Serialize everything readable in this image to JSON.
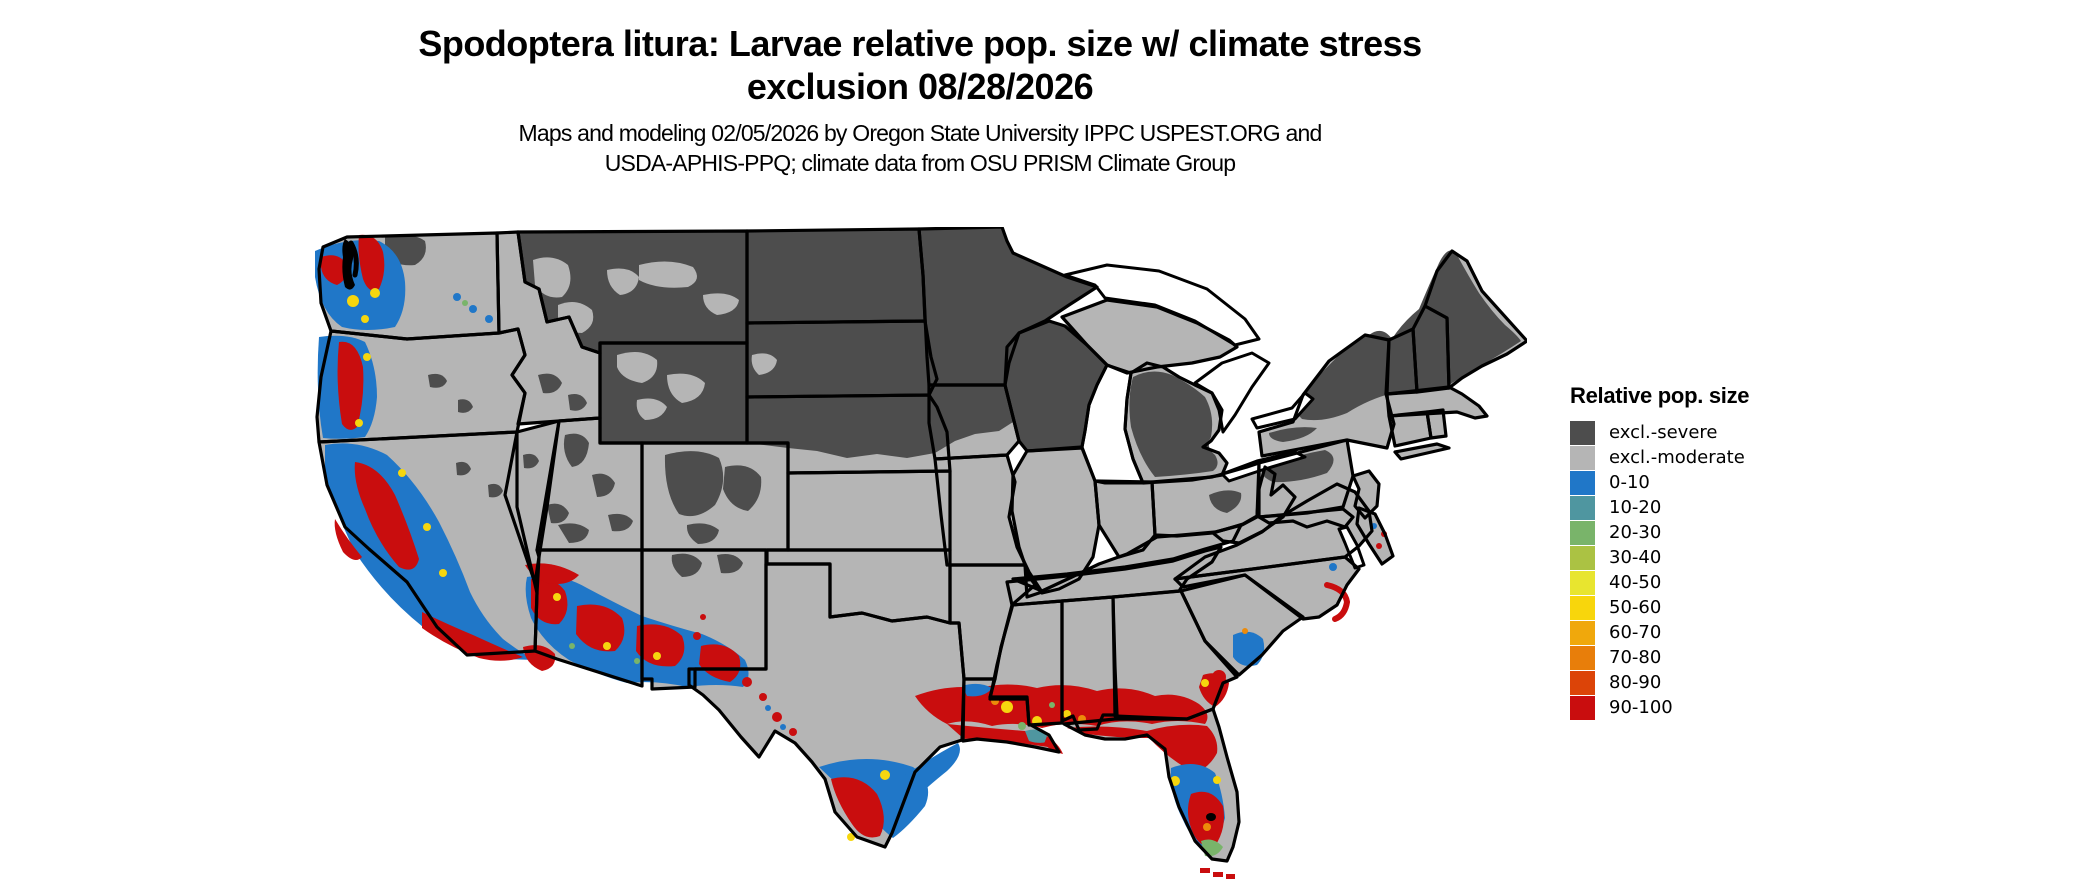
{
  "title": {
    "line1": "Spodoptera litura: Larvae relative pop. size w/ climate stress",
    "line2": "exclusion 08/28/2026"
  },
  "subtitle": {
    "line1": "Maps and modeling 02/05/2026 by Oregon State University IPPC USPEST.ORG and",
    "line2": "USDA-APHIS-PPQ; climate data from OSU PRISM Climate Group"
  },
  "legend": {
    "title": "Relative pop. size",
    "items": [
      {
        "label": "excl.-severe",
        "color": "#4d4d4d"
      },
      {
        "label": "excl.-moderate",
        "color": "#b5b5b5"
      },
      {
        "label": "0-10",
        "color": "#2077c8"
      },
      {
        "label": "10-20",
        "color": "#4f96a0"
      },
      {
        "label": "20-30",
        "color": "#79b46a"
      },
      {
        "label": "30-40",
        "color": "#abc243"
      },
      {
        "label": "40-50",
        "color": "#e8e52f"
      },
      {
        "label": "50-60",
        "color": "#f8d60c"
      },
      {
        "label": "60-70",
        "color": "#f0a80c"
      },
      {
        "label": "70-80",
        "color": "#e87e0a"
      },
      {
        "label": "80-90",
        "color": "#dc4408"
      },
      {
        "label": "90-100",
        "color": "#c90d0e"
      }
    ]
  },
  "map": {
    "region": "Contiguous United States",
    "base_fill": "#b5b5b5",
    "severe_fill": "#4d4d4d",
    "border_color": "#000000",
    "background": "#ffffff"
  }
}
